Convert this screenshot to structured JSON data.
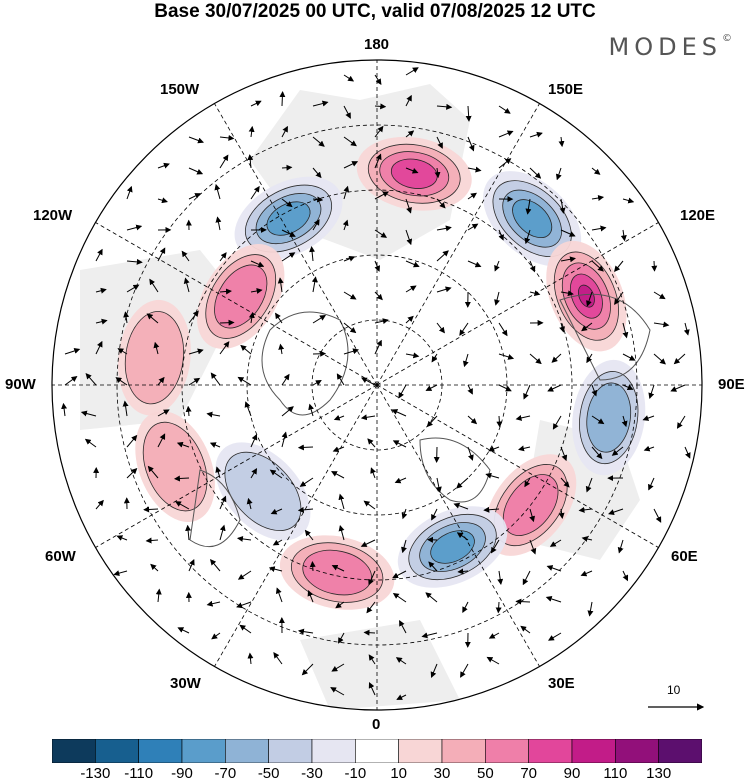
{
  "title": "Base 30/07/2025 00 UTC, valid 07/08/2025 12 UTC",
  "brand": "MODES",
  "brand_mark": "©",
  "longitude_labels": {
    "top": "180",
    "bottom": "0",
    "left": "90W",
    "right": "90E",
    "w150": "150W",
    "e150": "150E",
    "w120": "120W",
    "e120": "120E",
    "w60": "60W",
    "e60": "60E",
    "w30": "30W",
    "e30": "30E"
  },
  "reference_vector": {
    "label": "10"
  },
  "colorbar": {
    "colors": [
      "#0d3a5c",
      "#175f8f",
      "#2f80b8",
      "#5a9dcb",
      "#8fb3d6",
      "#c2cde4",
      "#e6e6f2",
      "#ffffff",
      "#f8d6d6",
      "#f4aeb8",
      "#ef7fa9",
      "#e2469b",
      "#c21c88",
      "#92107a",
      "#5c0f6e"
    ],
    "tick_labels": [
      "-130",
      "-110",
      "-90",
      "-70",
      "-50",
      "-30",
      "-10",
      "10",
      "30",
      "50",
      "70",
      "90",
      "110",
      "130"
    ]
  },
  "anomaly_centers": [
    {
      "sign": "positive",
      "strength": 3,
      "bearing_deg": 170,
      "radius": 0.66
    },
    {
      "sign": "negative",
      "strength": 3,
      "bearing_deg": 137,
      "radius": 0.7
    },
    {
      "sign": "positive",
      "strength": 4,
      "bearing_deg": 113,
      "radius": 0.7
    },
    {
      "sign": "negative",
      "strength": 2,
      "bearing_deg": 82,
      "radius": 0.72
    },
    {
      "sign": "positive",
      "strength": 2,
      "bearing_deg": 52,
      "radius": 0.6
    },
    {
      "sign": "negative",
      "strength": 3,
      "bearing_deg": 25,
      "radius": 0.55
    },
    {
      "sign": "positive",
      "strength": 2,
      "bearing_deg": 348,
      "radius": 0.59
    },
    {
      "sign": "negative",
      "strength": 1,
      "bearing_deg": 313,
      "radius": 0.48
    },
    {
      "sign": "positive",
      "strength": 1,
      "bearing_deg": 292,
      "radius": 0.67
    },
    {
      "sign": "negative",
      "strength": 3,
      "bearing_deg": 208,
      "radius": 0.58
    },
    {
      "sign": "positive",
      "strength": 2,
      "bearing_deg": 237,
      "radius": 0.5
    },
    {
      "sign": "positive",
      "strength": 1,
      "bearing_deg": 263,
      "radius": 0.69
    }
  ]
}
